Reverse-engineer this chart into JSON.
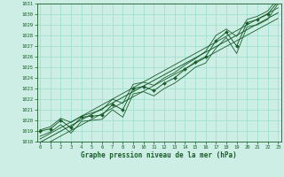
{
  "xlabel": "Graphe pression niveau de la mer (hPa)",
  "hours": [
    0,
    1,
    2,
    3,
    4,
    5,
    6,
    7,
    8,
    9,
    10,
    11,
    12,
    13,
    14,
    15,
    16,
    17,
    18,
    19,
    20,
    21,
    22,
    23
  ],
  "pressure_main": [
    1019.0,
    1019.2,
    1020.0,
    1019.3,
    1020.3,
    1020.4,
    1020.5,
    1021.5,
    1021.0,
    1023.0,
    1023.2,
    1022.8,
    1023.5,
    1024.0,
    1024.8,
    1025.5,
    1026.0,
    1027.5,
    1028.3,
    1027.0,
    1029.2,
    1029.5,
    1030.0,
    1031.2
  ],
  "pressure_high": [
    1019.1,
    1019.4,
    1020.2,
    1019.8,
    1020.4,
    1020.7,
    1021.0,
    1022.0,
    1021.6,
    1023.4,
    1023.6,
    1023.3,
    1024.0,
    1024.5,
    1025.2,
    1025.8,
    1026.5,
    1028.0,
    1028.6,
    1027.9,
    1029.5,
    1029.8,
    1030.3,
    1031.5
  ],
  "pressure_low": [
    1018.5,
    1018.9,
    1019.6,
    1018.8,
    1019.9,
    1020.0,
    1020.1,
    1021.0,
    1020.3,
    1022.5,
    1022.7,
    1022.3,
    1023.0,
    1023.5,
    1024.2,
    1025.0,
    1025.4,
    1026.8,
    1027.8,
    1026.3,
    1028.8,
    1029.0,
    1029.5,
    1031.0
  ],
  "bg_color": "#cceee4",
  "grid_color": "#99ddcc",
  "line_color": "#1a5c2a",
  "ylim_min": 1018,
  "ylim_max": 1031,
  "yticks": [
    1018,
    1019,
    1020,
    1021,
    1022,
    1023,
    1024,
    1025,
    1026,
    1027,
    1028,
    1029,
    1030,
    1031
  ],
  "xticks": [
    0,
    1,
    2,
    3,
    4,
    5,
    6,
    7,
    8,
    9,
    10,
    11,
    12,
    13,
    14,
    15,
    16,
    17,
    18,
    19,
    20,
    21,
    22,
    23
  ]
}
